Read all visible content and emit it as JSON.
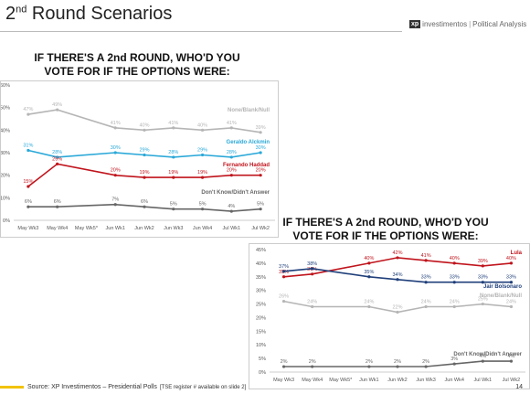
{
  "header": {
    "title_main": "2",
    "title_sup": "nd",
    "title_rest": " Round Scenarios",
    "brand_logo": "xp",
    "brand_name": "investimentos",
    "brand_divider": "|",
    "brand_tag": "Political Analysis"
  },
  "footer": {
    "source": "Source: XP Investimentos – Presidential Polls",
    "note": "[TSE register # available on slide 2]",
    "page": "14"
  },
  "chart_data": [
    {
      "type": "line",
      "title_lines": [
        "IF THERE'S A 2nd ROUND, WHO'D YOU",
        "VOTE FOR IF THE OPTIONS WERE:"
      ],
      "categories": [
        "May Wk3",
        "May Wk4",
        "May Wk5*",
        "Jun Wk1",
        "Jun Wk2",
        "Jun Wk3",
        "Jun Wk4",
        "Jul Wk1",
        "Jul Wk2"
      ],
      "ylim": [
        0,
        60
      ],
      "yticks": [
        "0%",
        "10%",
        "20%",
        "30%",
        "40%",
        "50%",
        "60%"
      ],
      "series": [
        {
          "name": "None/Blank/Null",
          "color": "#b5b5b5",
          "values": [
            47,
            49,
            null,
            41,
            40,
            41,
            40,
            41,
            39
          ],
          "labels": [
            "47%",
            "49%",
            "",
            "41%",
            "40%",
            "41%",
            "40%",
            "41%",
            "39%"
          ],
          "label_pos": "above"
        },
        {
          "name": "Geraldo Alckmin",
          "color": "#2aa8d8",
          "values": [
            31,
            28,
            null,
            30,
            29,
            28,
            29,
            28,
            30
          ],
          "labels": [
            "31%",
            "28%",
            "",
            "30%",
            "29%",
            "28%",
            "29%",
            "28%",
            "30%"
          ],
          "label_pos": "above"
        },
        {
          "name": "Fernando Haddad",
          "color": "#c0141c",
          "values": [
            15,
            25,
            null,
            20,
            19,
            19,
            19,
            20,
            20
          ],
          "labels": [
            "15%",
            "25%",
            "",
            "20%",
            "19%",
            "19%",
            "19%",
            "20%",
            "20%"
          ],
          "label_pos": "above"
        },
        {
          "name": "Don't Know/Didn't Answer",
          "color": "#666666",
          "values": [
            6,
            6,
            null,
            7,
            6,
            5,
            5,
            4,
            5
          ],
          "labels": [
            "6%",
            "6%",
            "",
            "7%",
            "6%",
            "5%",
            "5%",
            "4%",
            "5%"
          ],
          "label_pos": "above"
        }
      ]
    },
    {
      "type": "line",
      "title_lines": [
        "IF THERE'S A 2nd ROUND, WHO'D YOU",
        "VOTE FOR IF THE OPTIONS WERE:"
      ],
      "categories": [
        "May Wk3",
        "May Wk4",
        "May Wk5*",
        "Jun Wk1",
        "Jun Wk2",
        "Jun Wk3",
        "Jun Wk4",
        "Jul Wk1",
        "Jul Wk2"
      ],
      "ylim": [
        0,
        45
      ],
      "yticks": [
        "0%",
        "5%",
        "10%",
        "15%",
        "20%",
        "25%",
        "30%",
        "35%",
        "40%",
        "45%"
      ],
      "series": [
        {
          "name": "Lula",
          "color": "#c0141c",
          "values": [
            35,
            36,
            null,
            40,
            42,
            41,
            40,
            39,
            40
          ],
          "labels": [
            "35%",
            "36%",
            "",
            "40%",
            "42%",
            "41%",
            "40%",
            "39%",
            "40%"
          ],
          "label_pos": "above"
        },
        {
          "name": "Jair Bolsonaro",
          "color": "#1f3f7a",
          "values": [
            37,
            38,
            null,
            35,
            34,
            33,
            33,
            33,
            33
          ],
          "labels": [
            "37%",
            "38%",
            "",
            "35%",
            "34%",
            "33%",
            "33%",
            "33%",
            "33%"
          ],
          "label_pos": "above"
        },
        {
          "name": "None/Blank/Null",
          "color": "#b5b5b5",
          "values": [
            26,
            24,
            null,
            24,
            22,
            24,
            24,
            25,
            24
          ],
          "labels": [
            "26%",
            "24%",
            "",
            "24%",
            "22%",
            "24%",
            "24%",
            "25%",
            "24%"
          ],
          "label_pos": "above"
        },
        {
          "name": "Don't Know/Didn't Answer",
          "color": "#666666",
          "values": [
            2,
            2,
            null,
            2,
            2,
            2,
            3,
            4,
            4
          ],
          "labels": [
            "2%",
            "2%",
            "",
            "2%",
            "2%",
            "2%",
            "3%",
            "4%",
            "4%"
          ],
          "label_pos": "above"
        }
      ]
    }
  ]
}
